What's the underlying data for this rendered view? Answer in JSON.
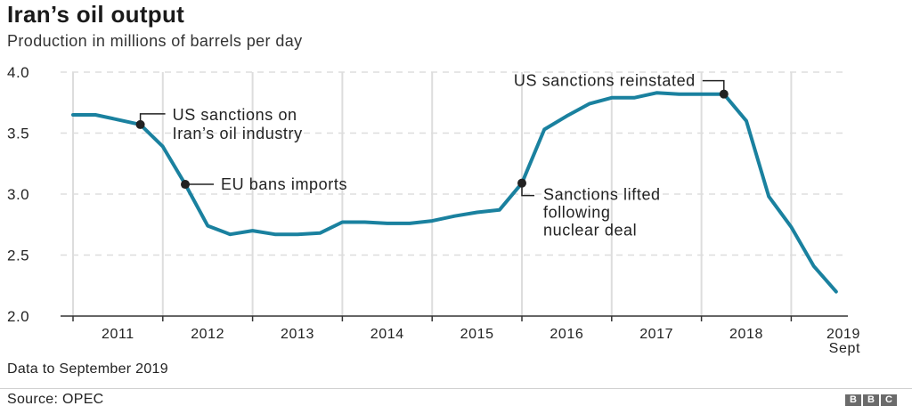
{
  "header": {
    "title": "Iran’s oil output",
    "subtitle": "Production in millions of barrels per day"
  },
  "footer": {
    "note": "Data to September 2019",
    "source": "Source: OPEC",
    "logo_letters": [
      "B",
      "B",
      "C"
    ]
  },
  "colors": {
    "line": "#1a819f",
    "marker": "#222222",
    "grid": "#dddddd",
    "axis": "#333333"
  },
  "chart_data": {
    "type": "line",
    "title": "Iran’s oil output",
    "subtitle": "Production in millions of barrels per day",
    "xlabel": "",
    "ylabel": "Production (million barrels/day)",
    "ylim": [
      2.0,
      4.0
    ],
    "yticks": [
      "2.0",
      "2.5",
      "3.0",
      "3.5",
      "4.0"
    ],
    "xtick_labels": [
      "2011",
      "2012",
      "2013",
      "2014",
      "2015",
      "2016",
      "2017",
      "2018",
      "2019",
      "Sept"
    ],
    "grid": {
      "horizontal": "dashed",
      "vertical": "solid at year boundaries"
    },
    "legend": null,
    "x_period": "quarterly, 2011 Q1 to Sept 2019",
    "series": [
      {
        "name": "Iran oil production",
        "values": [
          3.65,
          3.65,
          3.61,
          3.57,
          3.39,
          3.08,
          2.74,
          2.67,
          2.7,
          2.67,
          2.67,
          2.68,
          2.77,
          2.77,
          2.76,
          2.76,
          2.78,
          2.82,
          2.85,
          2.87,
          3.09,
          3.53,
          3.64,
          3.74,
          3.79,
          3.79,
          3.83,
          3.82,
          3.82,
          3.82,
          3.6,
          2.98,
          2.73,
          2.41,
          2.2
        ]
      }
    ],
    "annotations": [
      {
        "index": 3,
        "lines": [
          "US sanctions on",
          "Iran’s oil industry"
        ]
      },
      {
        "index": 5,
        "lines": [
          "EU bans imports"
        ]
      },
      {
        "index": 20,
        "lines": [
          "Sanctions lifted",
          "following",
          "nuclear deal"
        ]
      },
      {
        "index": 29,
        "lines": [
          "US sanctions reinstated"
        ]
      }
    ],
    "data_note": "Data to September 2019",
    "source": "OPEC"
  }
}
